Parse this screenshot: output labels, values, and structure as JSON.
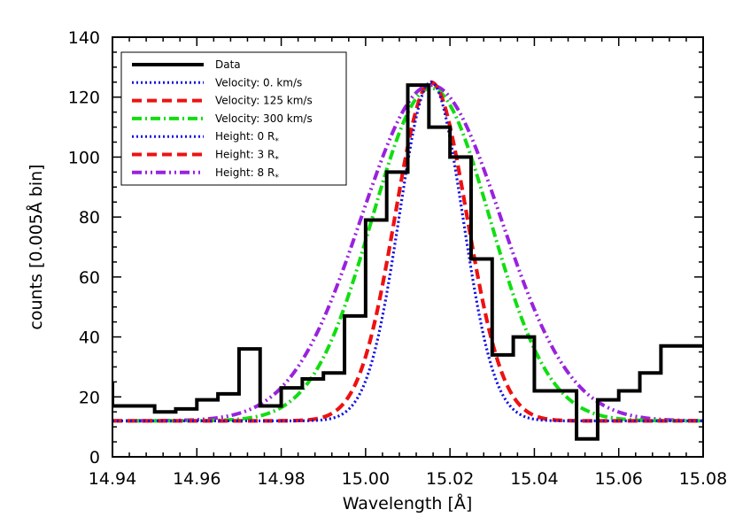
{
  "chart_data": {
    "type": "line",
    "xlabel": "Wavelength [Å]",
    "ylabel": "counts [0.005Å bin]",
    "xlim": [
      14.94,
      15.08
    ],
    "ylim": [
      0,
      140
    ],
    "x_ticks": [
      "14.94",
      "14.96",
      "14.98",
      "15.00",
      "15.02",
      "15.04",
      "15.06",
      "15.08"
    ],
    "x_tick_values": [
      14.94,
      14.96,
      14.98,
      15.0,
      15.02,
      15.04,
      15.06,
      15.08
    ],
    "y_ticks": [
      "0",
      "20",
      "40",
      "60",
      "80",
      "100",
      "120",
      "140"
    ],
    "y_tick_values": [
      0,
      20,
      40,
      60,
      80,
      100,
      120,
      140
    ],
    "legend_position": "top-left",
    "histogram": {
      "name": "Data",
      "color": "#000000",
      "bin_width": 0.005,
      "bin_starts": [
        14.94,
        14.945,
        14.95,
        14.955,
        14.96,
        14.965,
        14.97,
        14.975,
        14.98,
        14.985,
        14.99,
        14.995,
        15.0,
        15.005,
        15.01,
        15.015,
        15.02,
        15.025,
        15.03,
        15.035,
        15.04,
        15.045,
        15.05,
        15.055,
        15.06,
        15.065,
        15.07,
        15.075
      ],
      "counts": [
        17,
        17,
        15,
        16,
        19,
        21,
        36,
        17,
        23,
        26,
        28,
        47,
        79,
        95,
        124,
        110,
        100,
        66,
        34,
        40,
        22,
        22,
        6,
        19,
        22,
        28,
        37,
        37
      ],
      "left_edge_value": 25
    },
    "series": [
      {
        "name": "Velocity: 0. km/s",
        "color": "#1414e6",
        "dash": "dotted",
        "center": 15.0155,
        "sigma": 0.0075,
        "amplitude": 113,
        "baseline": 12
      },
      {
        "name": "Velocity: 125 km/s",
        "color": "#ee1111",
        "dash": "dashed",
        "center": 15.0155,
        "sigma": 0.0085,
        "amplitude": 113,
        "baseline": 12
      },
      {
        "name": "Velocity: 300 km/s",
        "color": "#11dd11",
        "dash": "dashdot",
        "center": 15.0155,
        "sigma": 0.014,
        "amplitude": 111,
        "baseline": 12
      },
      {
        "name": "Height: 0 R",
        "color": "#1414e6",
        "dash": "dotted",
        "center": 15.0155,
        "sigma": 0.0075,
        "amplitude": 113,
        "baseline": 12
      },
      {
        "name": "Height: 3 R",
        "color": "#ee1111",
        "dash": "dashed",
        "center": 15.0155,
        "sigma": 0.0085,
        "amplitude": 113,
        "baseline": 12
      },
      {
        "name": "Height: 8 R",
        "color": "#9922dd",
        "dash": "dashdotdot",
        "center": 15.0155,
        "sigma": 0.0165,
        "amplitude": 112,
        "baseline": 12
      }
    ],
    "legend": [
      {
        "label": "Data",
        "subscript": "",
        "color": "#000000",
        "dash": "solid"
      },
      {
        "label": "Velocity: 0. km/s",
        "subscript": "",
        "color": "#1414e6",
        "dash": "dotted"
      },
      {
        "label": "Velocity: 125 km/s",
        "subscript": "",
        "color": "#ee1111",
        "dash": "dashed"
      },
      {
        "label": "Velocity: 300 km/s",
        "subscript": "",
        "color": "#11dd11",
        "dash": "dashdot"
      },
      {
        "label": "Height: 0 R",
        "subscript": "*",
        "color": "#1414e6",
        "dash": "dotted"
      },
      {
        "label": "Height: 3 R",
        "subscript": "*",
        "color": "#ee1111",
        "dash": "dashed"
      },
      {
        "label": "Height: 8 R",
        "subscript": "*",
        "color": "#9922dd",
        "dash": "dashdotdot"
      }
    ]
  }
}
